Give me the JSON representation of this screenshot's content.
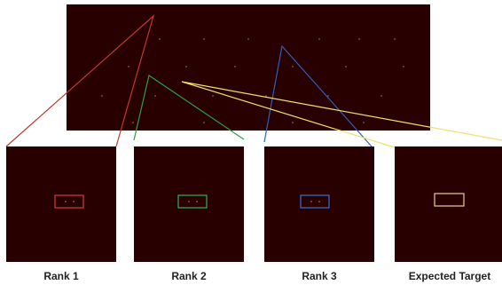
{
  "panels": [
    {
      "label": "Rank 1"
    },
    {
      "label": "Rank 2"
    },
    {
      "label": "Rank 3"
    },
    {
      "label": "Expected Target"
    }
  ]
}
